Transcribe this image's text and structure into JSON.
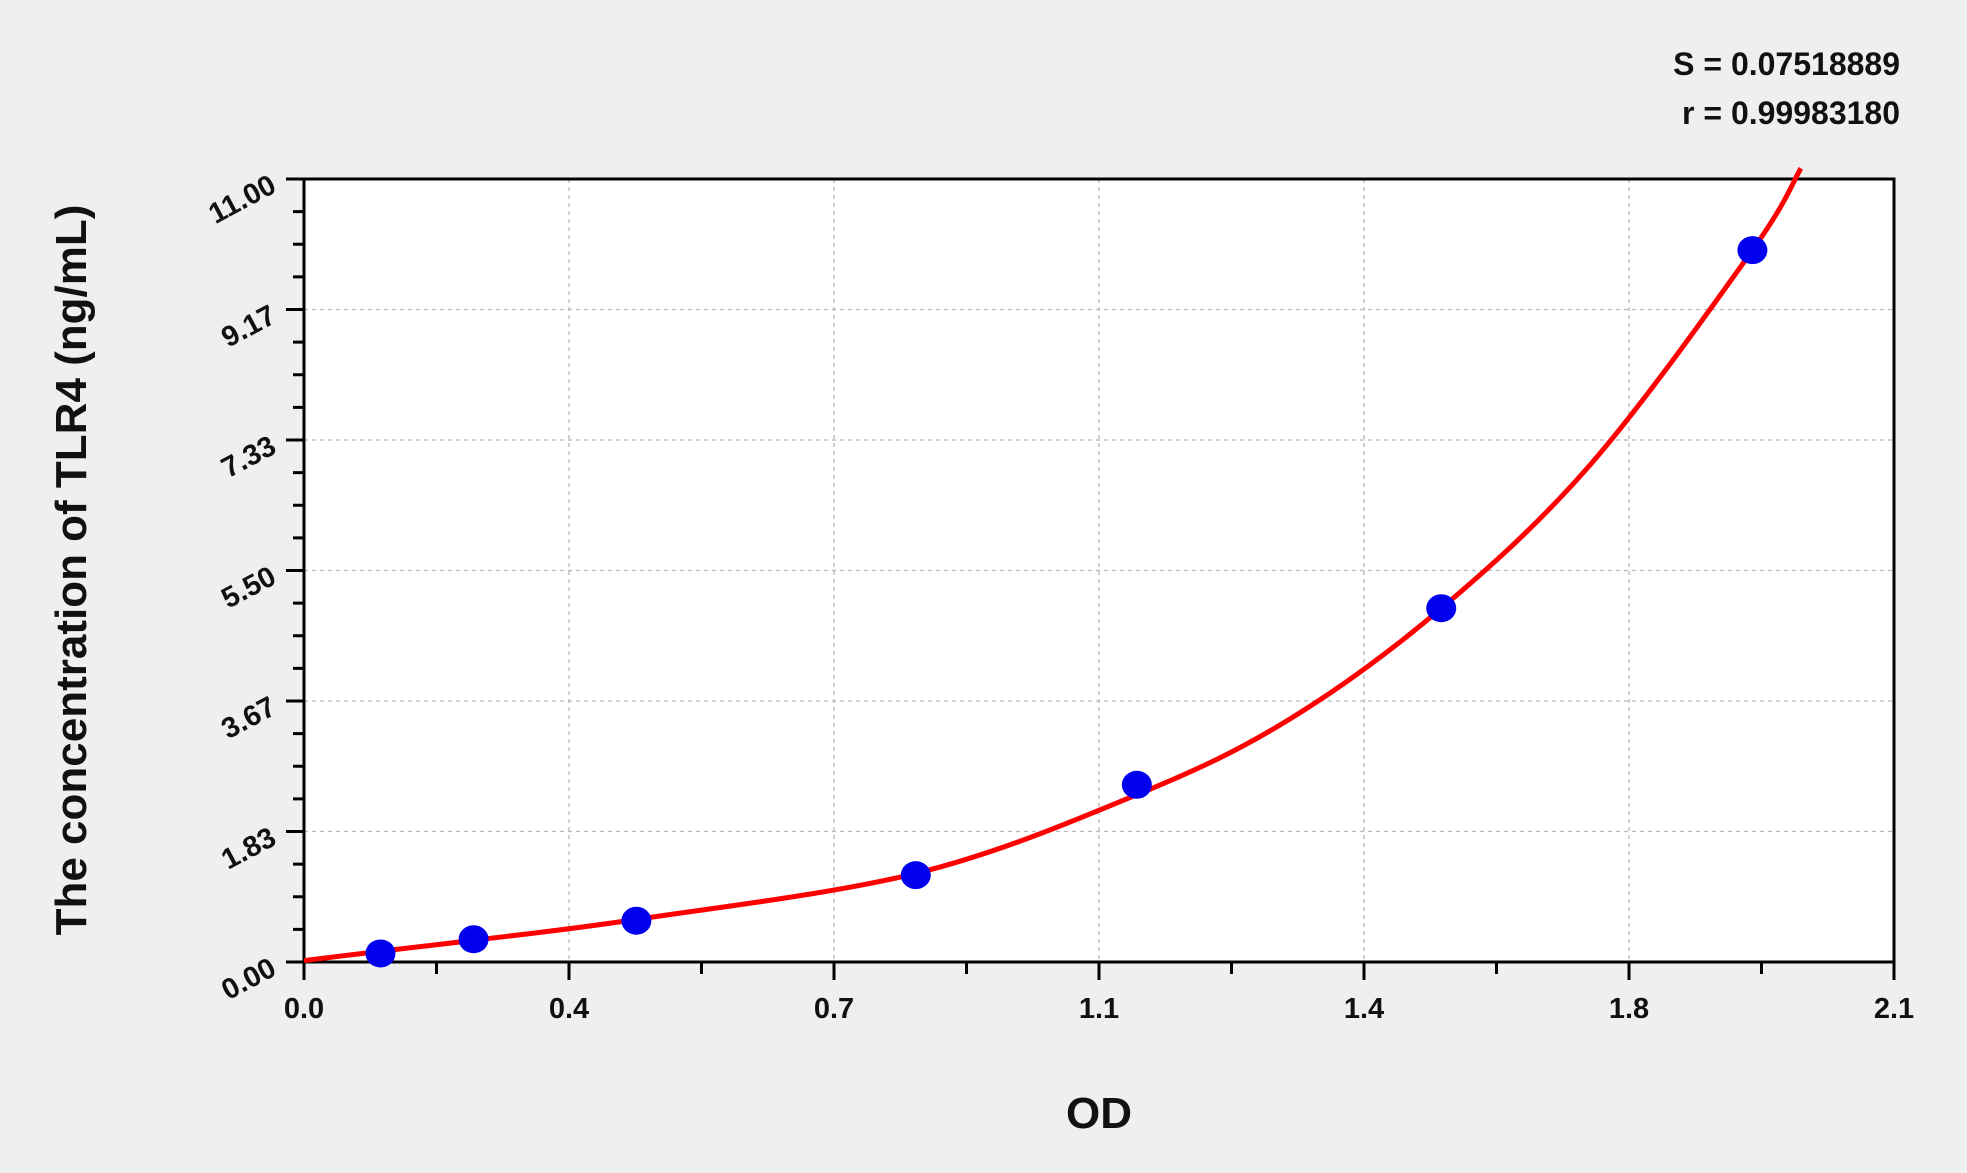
{
  "chart_data": {
    "type": "scatter",
    "xlabel": "OD",
    "ylabel": "The concentration of TLR4 (ng/mL)",
    "xlim": [
      0,
      2.1
    ],
    "ylim": [
      0,
      11
    ],
    "x_ticks": [
      0,
      0.35,
      0.7,
      1.05,
      1.4,
      1.75,
      2.1
    ],
    "x_tick_labels": [
      "0.0",
      "0.4",
      "0.7",
      "1.1",
      "1.4",
      "1.8",
      "2.1"
    ],
    "y_ticks": [
      0,
      1.833,
      3.667,
      5.5,
      7.333,
      9.167,
      11
    ],
    "y_tick_labels": [
      "0.00",
      "1.83",
      "3.67",
      "5.50",
      "7.33",
      "9.17",
      "11.00"
    ],
    "grid": true,
    "points": {
      "x": [
        0.101,
        0.224,
        0.439,
        0.808,
        1.1,
        1.502,
        1.913
      ],
      "y": [
        0.12,
        0.32,
        0.58,
        1.22,
        2.49,
        4.97,
        10.0
      ],
      "color": "#0000ee"
    },
    "fit_curve": {
      "x": [
        0,
        0.1,
        0.22,
        0.44,
        0.81,
        1.1,
        1.3,
        1.5,
        1.7,
        1.913,
        1.977
      ],
      "y": [
        0.02,
        0.15,
        0.3,
        0.6,
        1.25,
        2.35,
        3.4,
        4.95,
        7.0,
        10.0,
        11.15
      ],
      "color": "#ff0000"
    },
    "annotations": {
      "s": "S = 0.07518889",
      "r": "r = 0.99983180"
    }
  }
}
